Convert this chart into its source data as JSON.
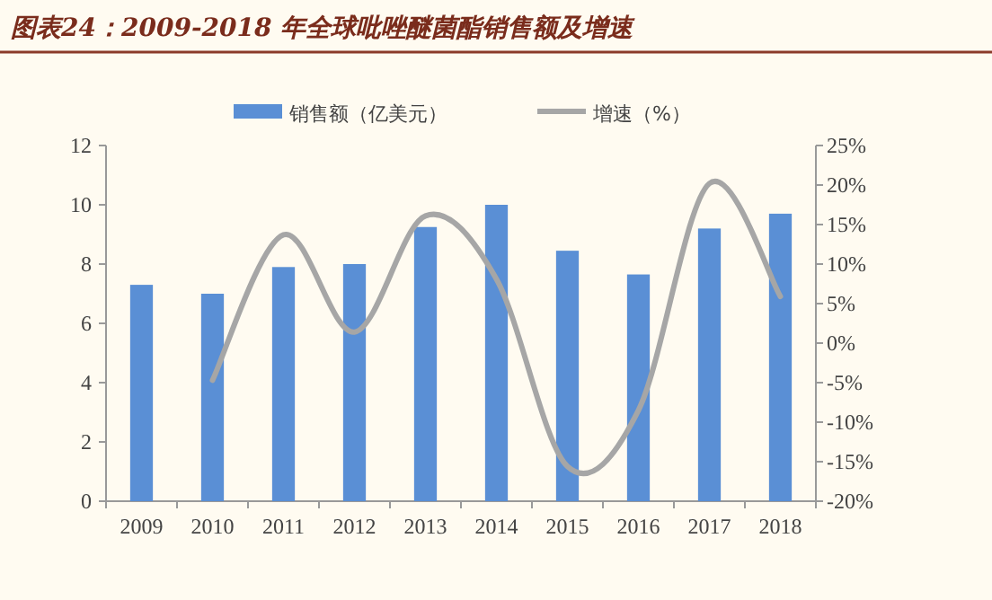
{
  "chart_data": {
    "type": "bar",
    "title": "图表24：2009-2018 年全球吡唑醚菌酯销售额及增速",
    "categories": [
      "2009",
      "2010",
      "2011",
      "2012",
      "2013",
      "2014",
      "2015",
      "2016",
      "2017",
      "2018"
    ],
    "series": [
      {
        "name": "销售额（亿美元）",
        "color": "#5a8fd5",
        "values": [
          7.3,
          7.0,
          7.9,
          8.0,
          9.25,
          10.0,
          8.45,
          7.65,
          9.2,
          9.7
        ]
      },
      {
        "name": "增速（%）",
        "type": "line",
        "axis": "y2",
        "color": "#a6a6a6",
        "values": [
          null,
          -4.7,
          13.7,
          1.4,
          16.1,
          8.1,
          -15.6,
          -8.5,
          20.2,
          5.9
        ]
      }
    ],
    "ylim": [
      0,
      12
    ],
    "yticks": [
      0,
      2,
      4,
      6,
      8,
      10,
      12
    ],
    "y2lim": [
      -20,
      25
    ],
    "y2ticks": [
      {
        "value": 25,
        "label": "25%"
      },
      {
        "value": 20,
        "label": "20%"
      },
      {
        "value": 15,
        "label": "15%"
      },
      {
        "value": 10,
        "label": "10%"
      },
      {
        "value": 5,
        "label": "5%"
      },
      {
        "value": 0,
        "label": "0%"
      },
      {
        "value": -5,
        "label": "-5%"
      },
      {
        "value": -10,
        "label": "-10%"
      },
      {
        "value": -15,
        "label": "-15%"
      },
      {
        "value": -20,
        "label": "-20%"
      }
    ],
    "legend": "top",
    "grid": false,
    "marker": "none"
  }
}
